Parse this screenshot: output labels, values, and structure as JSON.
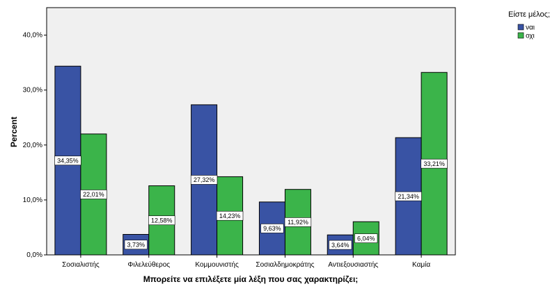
{
  "chart_data": {
    "type": "bar",
    "title": "",
    "xlabel": "Μπορείτε να επιλέξετε μία λέξη που σας χαρακτηρίζει;",
    "ylabel": "Percent",
    "ylim": [
      0,
      45
    ],
    "yticks": [
      0,
      10,
      20,
      30,
      40
    ],
    "ytick_labels": [
      "0,0%",
      "10,0%",
      "20,0%",
      "30,0%",
      "40,0%"
    ],
    "categories": [
      "Σοσιαλιστής",
      "Φιλελεύθερος",
      "Κομμουνιστής",
      "Σοσιαλδημοκράτης",
      "Αντιεξουσιαστής",
      "Καμία"
    ],
    "legend_title": "Είστε μέλος;",
    "legend_position": "top-right",
    "grid": false,
    "series": [
      {
        "name": "ναι",
        "color": "#3953a4",
        "values": [
          34.35,
          3.73,
          27.32,
          9.63,
          3.64,
          21.34
        ],
        "labels": [
          "34,35%",
          "3,73%",
          "27,32%",
          "9,63%",
          "3,64%",
          "21,34%"
        ]
      },
      {
        "name": "οχι",
        "color": "#3bb44a",
        "values": [
          22.01,
          12.58,
          14.23,
          11.92,
          6.04,
          33.21
        ],
        "labels": [
          "22,01%",
          "12,58%",
          "14,23%",
          "11,92%",
          "6,04%",
          "33,21%"
        ]
      }
    ]
  }
}
